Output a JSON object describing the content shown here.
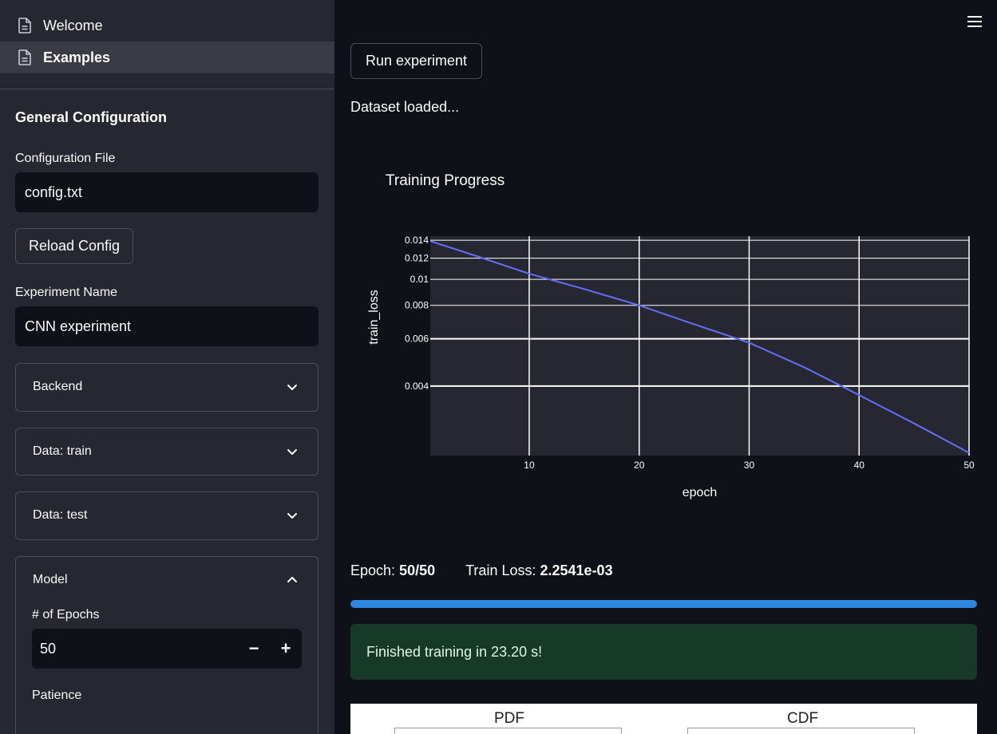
{
  "sidebar": {
    "nav": [
      {
        "label": "Welcome",
        "icon": "document-icon",
        "active": false
      },
      {
        "label": "Examples",
        "icon": "document-icon",
        "active": true
      }
    ],
    "section_title": "General Configuration",
    "config_file": {
      "label": "Configuration File",
      "value": "config.txt"
    },
    "reload_button": "Reload Config",
    "experiment_name": {
      "label": "Experiment Name",
      "value": "CNN experiment"
    },
    "expanders": [
      {
        "label": "Backend",
        "expanded": false
      },
      {
        "label": "Data: train",
        "expanded": false
      },
      {
        "label": "Data: test",
        "expanded": false
      },
      {
        "label": "Model",
        "expanded": true
      }
    ],
    "model": {
      "epochs": {
        "label": "# of Epochs",
        "value": "50",
        "minus": "−",
        "plus": "+"
      },
      "patience_label": "Patience"
    }
  },
  "main": {
    "menu_icon": "hamburger-icon",
    "run_button": "Run experiment",
    "dataset_status": "Dataset loaded...",
    "metrics": {
      "epoch_label": "Epoch:",
      "epoch_value": "50/50",
      "loss_label": "Train Loss:",
      "loss_value": "2.2541e-03"
    },
    "progress": 1.0,
    "success_message": "Finished training in 23.20 s!",
    "bottom_tabs": [
      "PDF",
      "CDF"
    ]
  },
  "colors": {
    "background": "#0e1117",
    "sidebar": "#262730",
    "plot_bg": "#262730",
    "line": "#636efa",
    "progress": "#2e86de",
    "success_bg": "#173928"
  },
  "chart_data": {
    "type": "line",
    "title": "Training Progress",
    "xlabel": "epoch",
    "ylabel": "train_loss",
    "y_scale": "log",
    "xlim": [
      1,
      50
    ],
    "ylim": [
      0.0022,
      0.0145
    ],
    "x_ticks": [
      10,
      20,
      30,
      40,
      50
    ],
    "y_ticks": [
      0.004,
      0.006,
      0.008,
      0.01,
      0.012,
      0.014
    ],
    "y_tick_labels": [
      "0.004",
      "0.006",
      "0.008",
      "0.01",
      "0.012",
      "0.014"
    ],
    "grid": true,
    "series": [
      {
        "x": [
          1,
          5,
          10,
          15,
          20,
          25,
          30,
          35,
          40,
          45,
          50
        ],
        "y": [
          0.0139,
          0.0123,
          0.0105,
          0.0092,
          0.008,
          0.0068,
          0.0058,
          0.0047,
          0.0037,
          0.0029,
          0.002254
        ]
      }
    ]
  }
}
